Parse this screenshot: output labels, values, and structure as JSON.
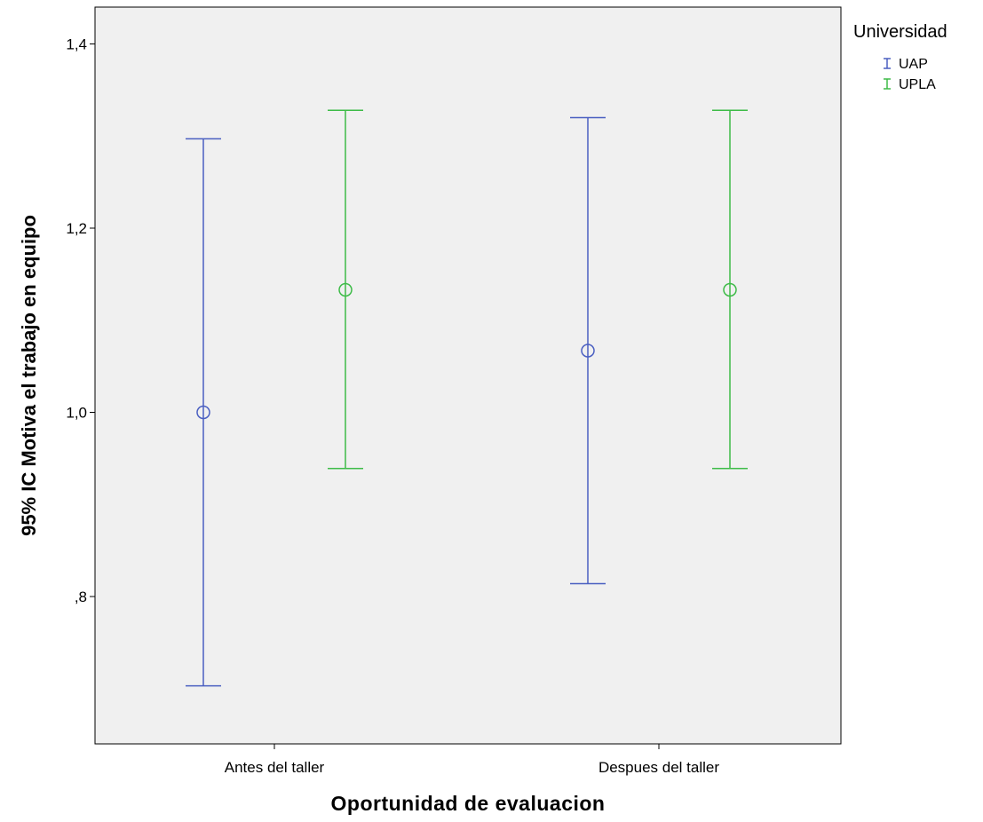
{
  "chart_data": {
    "type": "errorbar",
    "xlabel": "Oportunidad de evaluacion",
    "ylabel": "95% IC Motiva el trabajo en equipo",
    "categories": [
      "Antes del taller",
      "Despues del taller"
    ],
    "ylim": [
      0.64,
      1.44
    ],
    "yticks": [
      0.8,
      1.0,
      1.2,
      1.4
    ],
    "ytick_labels": [
      ",8",
      "1,0",
      "1,2",
      "1,4"
    ],
    "grid": false,
    "legend": {
      "title": "Universidad",
      "position": "right"
    },
    "series": [
      {
        "name": "UAP",
        "color": "#4a5fc1",
        "mean": [
          1.0,
          1.067
        ],
        "lower": [
          0.703,
          0.814
        ],
        "upper": [
          1.297,
          1.32
        ]
      },
      {
        "name": "UPLA",
        "color": "#3dbb47",
        "mean": [
          1.133,
          1.133
        ],
        "lower": [
          0.939,
          0.939
        ],
        "upper": [
          1.328,
          1.328
        ]
      }
    ]
  },
  "plot_background": "#f0f0f0"
}
